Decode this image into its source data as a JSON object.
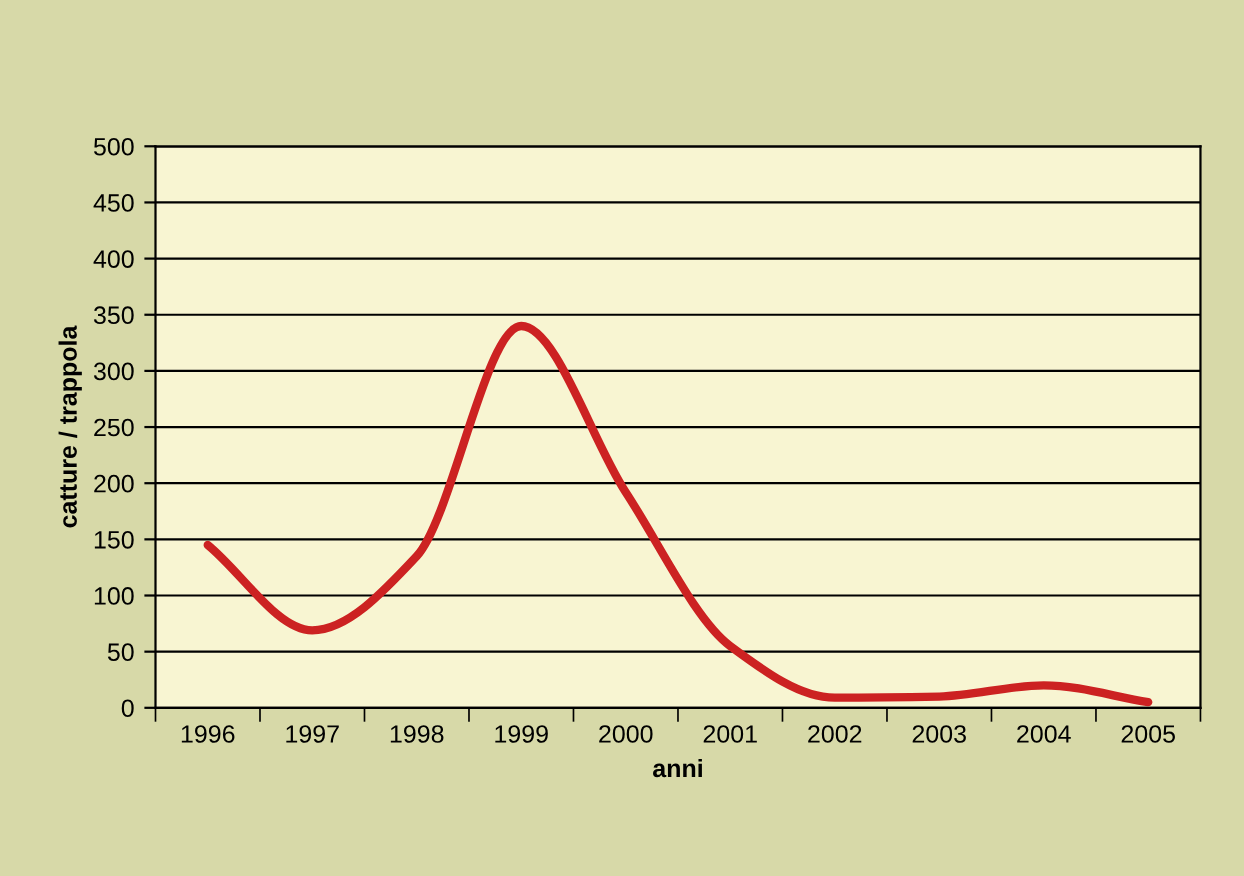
{
  "chart_data": {
    "type": "line",
    "xlabel": "anni",
    "ylabel": "catture / trappola",
    "categories": [
      "1996",
      "1997",
      "1998",
      "1999",
      "2000",
      "2001",
      "2002",
      "2003",
      "2004",
      "2005"
    ],
    "series": [
      {
        "color": "#cc2222",
        "values": [
          145,
          69,
          135,
          340,
          192,
          55,
          9,
          10,
          20,
          5
        ]
      }
    ],
    "ylim": [
      0,
      500
    ],
    "yticks": [
      0,
      50,
      100,
      150,
      200,
      250,
      300,
      350,
      400,
      450,
      500
    ],
    "grid": "y",
    "legend": false,
    "marker": "none",
    "line_style": "solid"
  }
}
